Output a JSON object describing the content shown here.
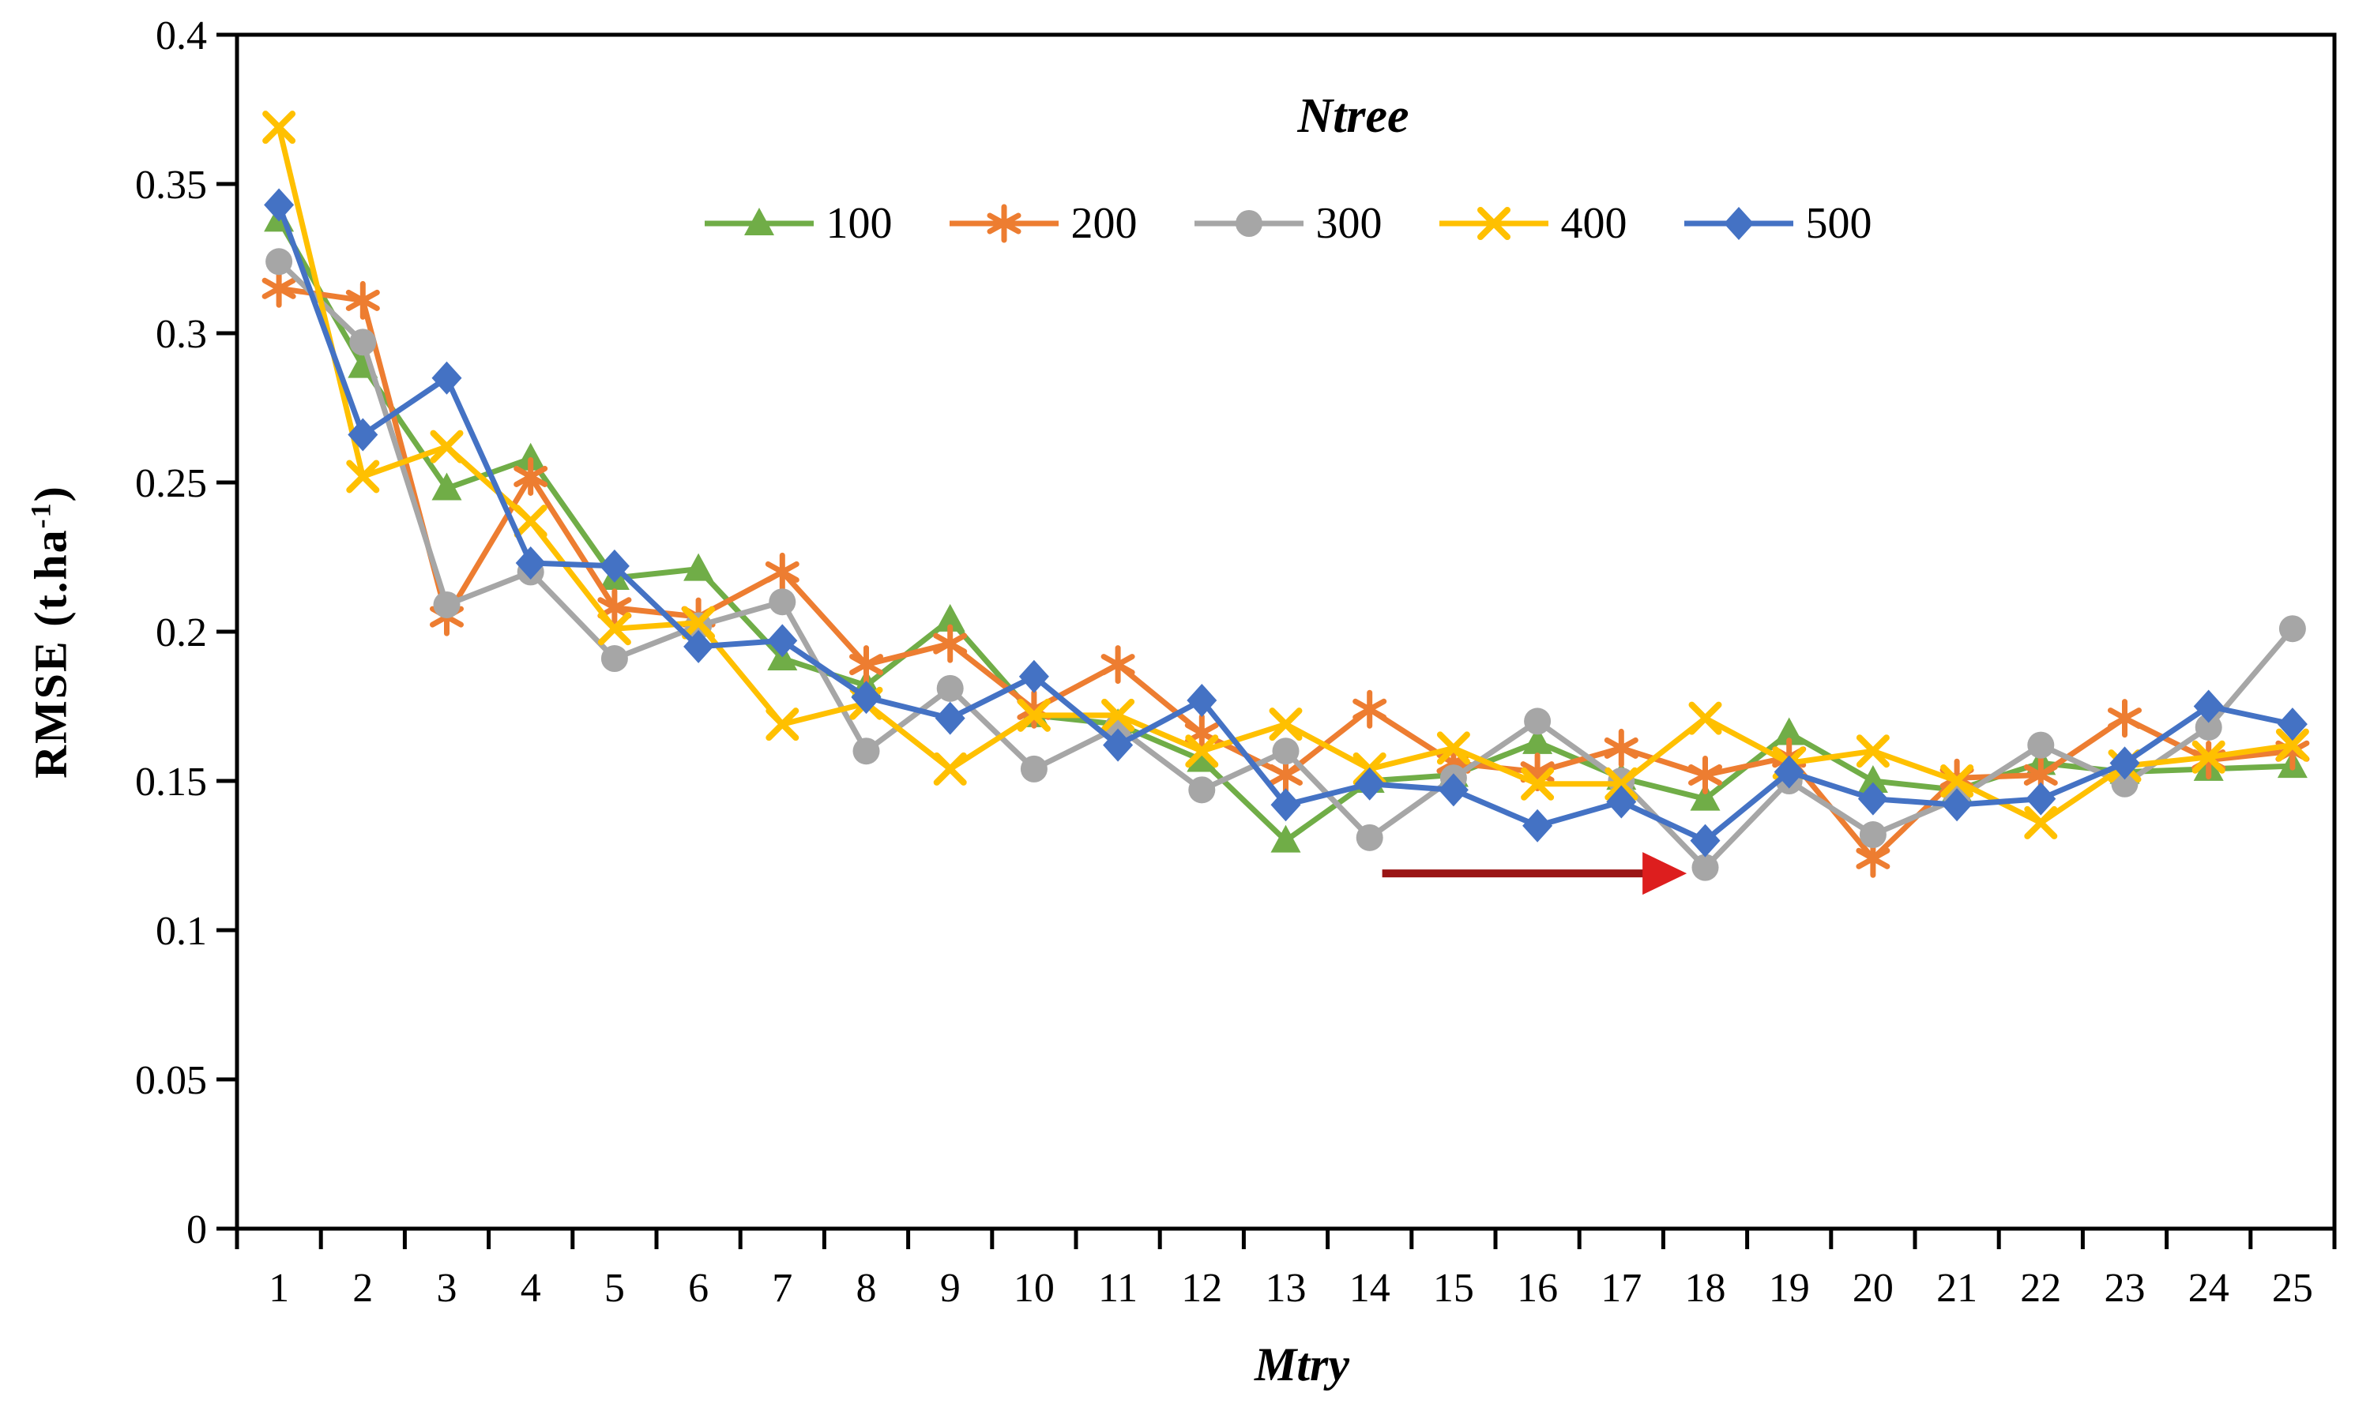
{
  "figure": {
    "background": "#ffffff",
    "axis_color": "#000000",
    "y_title": {
      "prefix": "RMSE  (t.ha",
      "sup": "-1",
      "suffix": ")"
    },
    "y_title_plain": "RMSE (t.ha-1)",
    "x_title": "Mtry",
    "legend_title": "Ntree"
  },
  "chart_data": {
    "type": "line",
    "title": "",
    "xlabel": "Mtry",
    "ylabel": "RMSE (t.ha-1)",
    "x": [
      1,
      2,
      3,
      4,
      5,
      6,
      7,
      8,
      9,
      10,
      11,
      12,
      13,
      14,
      15,
      16,
      17,
      18,
      19,
      20,
      21,
      22,
      23,
      24,
      25
    ],
    "ylim": [
      0,
      0.4
    ],
    "ytick_step": 0.05,
    "ytick_labels": [
      "0",
      "0.05",
      "0.1",
      "0.15",
      "0.2",
      "0.25",
      "0.3",
      "0.35",
      "0.4"
    ],
    "grid": false,
    "legend_position": "top-center",
    "series": [
      {
        "name": "100",
        "color": "#70AD47",
        "marker": "triangle",
        "values": [
          0.338,
          0.289,
          0.248,
          0.258,
          0.218,
          0.221,
          0.191,
          0.182,
          0.204,
          0.172,
          0.169,
          0.157,
          0.13,
          0.15,
          0.152,
          0.163,
          0.151,
          0.144,
          0.166,
          0.15,
          0.147,
          0.156,
          0.153,
          0.154,
          0.155
        ]
      },
      {
        "name": "200",
        "color": "#ED7D31",
        "marker": "asterisk",
        "values": [
          0.315,
          0.311,
          0.205,
          0.252,
          0.208,
          0.205,
          0.22,
          0.189,
          0.196,
          0.174,
          0.189,
          0.166,
          0.152,
          0.174,
          0.156,
          0.153,
          0.161,
          0.152,
          0.158,
          0.124,
          0.151,
          0.152,
          0.171,
          0.157,
          0.16
        ]
      },
      {
        "name": "300",
        "color": "#A6A6A6",
        "marker": "circle",
        "values": [
          0.324,
          0.297,
          0.209,
          0.22,
          0.191,
          0.202,
          0.21,
          0.16,
          0.181,
          0.154,
          0.168,
          0.147,
          0.16,
          0.131,
          0.151,
          0.17,
          0.15,
          0.121,
          0.15,
          0.132,
          0.144,
          0.162,
          0.149,
          0.168,
          0.201
        ]
      },
      {
        "name": "400",
        "color": "#FFC000",
        "marker": "x",
        "values": [
          0.369,
          0.252,
          0.262,
          0.237,
          0.201,
          0.203,
          0.169,
          0.176,
          0.154,
          0.172,
          0.172,
          0.16,
          0.169,
          0.154,
          0.161,
          0.149,
          0.149,
          0.171,
          0.156,
          0.16,
          0.15,
          0.136,
          0.155,
          0.158,
          0.162
        ]
      },
      {
        "name": "500",
        "color": "#4472C4",
        "marker": "diamond",
        "values": [
          0.343,
          0.266,
          0.285,
          0.223,
          0.222,
          0.195,
          0.197,
          0.178,
          0.171,
          0.185,
          0.162,
          0.177,
          0.142,
          0.149,
          0.147,
          0.135,
          0.143,
          0.13,
          0.153,
          0.144,
          0.142,
          0.144,
          0.156,
          0.175,
          0.169
        ]
      }
    ],
    "annotation": {
      "type": "arrow",
      "x_from": 14.15,
      "x_to": 17.78,
      "y": 0.119,
      "line_color": "#9A1515",
      "head_color": "#DD1E1E"
    }
  }
}
